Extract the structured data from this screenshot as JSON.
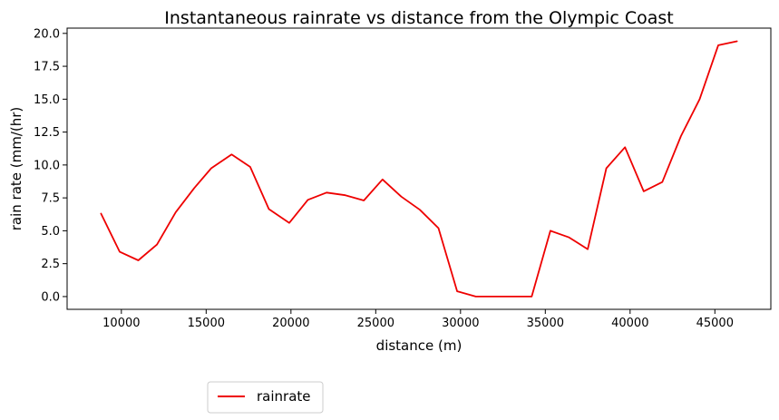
{
  "chart_data": {
    "type": "line",
    "title": "Instantaneous rainrate vs distance from the Olympic Coast",
    "xlabel": "distance (m)",
    "ylabel": "rain rate (mm/(hr)",
    "xlim": [
      6800,
      48300
    ],
    "ylim": [
      -0.97,
      20.4
    ],
    "xticks": [
      10000,
      15000,
      20000,
      25000,
      30000,
      35000,
      40000,
      45000
    ],
    "xtick_labels": [
      "10000",
      "15000",
      "20000",
      "25000",
      "30000",
      "35000",
      "40000",
      "45000"
    ],
    "yticks": [
      0.0,
      2.5,
      5.0,
      7.5,
      10.0,
      12.5,
      15.0,
      17.5,
      20.0
    ],
    "ytick_labels": [
      "0.0",
      "2.5",
      "5.0",
      "7.5",
      "10.0",
      "12.5",
      "15.0",
      "17.5",
      "20.0"
    ],
    "grid": false,
    "legend_position": "below",
    "series": [
      {
        "name": "rainrate",
        "color": "#ee0000",
        "x": [
          8800,
          9900,
          11000,
          12100,
          13200,
          14300,
          15300,
          16500,
          17600,
          18700,
          19900,
          21000,
          22100,
          23200,
          24300,
          25400,
          26500,
          27600,
          28700,
          29800,
          30900,
          32000,
          33100,
          34200,
          35300,
          36400,
          37500,
          38600,
          39700,
          40800,
          41900,
          43000,
          44100,
          45200,
          46300
        ],
        "y": [
          6.3,
          3.4,
          2.75,
          3.95,
          6.4,
          8.25,
          9.75,
          10.8,
          9.85,
          6.65,
          5.6,
          7.35,
          7.9,
          7.7,
          7.3,
          8.9,
          7.6,
          6.6,
          5.2,
          0.4,
          0.0,
          0.0,
          0.0,
          0.0,
          5.0,
          4.5,
          3.6,
          9.75,
          11.35,
          8.0,
          8.7,
          12.2,
          15.0,
          19.1,
          19.4
        ]
      }
    ]
  }
}
